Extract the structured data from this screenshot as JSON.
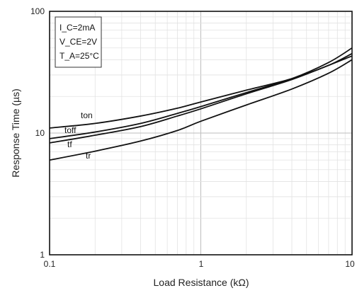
{
  "chart_data": {
    "type": "line",
    "xlabel": "Load Resistance (kΩ)",
    "ylabel": "Response Time (µs)",
    "xscale": "log",
    "yscale": "log",
    "xlim": [
      0.1,
      10
    ],
    "ylim": [
      1,
      100
    ],
    "x_ticks": [
      "0.1",
      "1",
      "10"
    ],
    "y_ticks": [
      "1",
      "10",
      "100"
    ],
    "grid": true,
    "conditions": {
      "ic": "I_C=2mA",
      "vce": "V_CE=2V",
      "ta": "T_A=25°C"
    },
    "series": [
      {
        "name": "ton",
        "x": [
          0.1,
          0.2,
          0.4,
          0.7,
          1,
          2,
          4,
          7,
          10
        ],
        "y": [
          11,
          12,
          13.8,
          16,
          18,
          22.5,
          28,
          36,
          45
        ]
      },
      {
        "name": "toff",
        "x": [
          0.1,
          0.2,
          0.4,
          0.7,
          1,
          2,
          4,
          7,
          10
        ],
        "y": [
          9,
          10.2,
          12,
          14.5,
          16.5,
          21.5,
          28,
          38,
          50
        ]
      },
      {
        "name": "tf",
        "x": [
          0.1,
          0.2,
          0.4,
          0.7,
          1,
          2,
          4,
          7,
          10
        ],
        "y": [
          8.3,
          9.6,
          11.3,
          13.8,
          15.8,
          21,
          27.5,
          36,
          43
        ]
      },
      {
        "name": "tr",
        "x": [
          0.1,
          0.2,
          0.4,
          0.7,
          1,
          2,
          4,
          7,
          10
        ],
        "y": [
          6,
          7.1,
          8.6,
          10.5,
          12.5,
          17,
          23,
          31,
          40
        ]
      }
    ]
  }
}
